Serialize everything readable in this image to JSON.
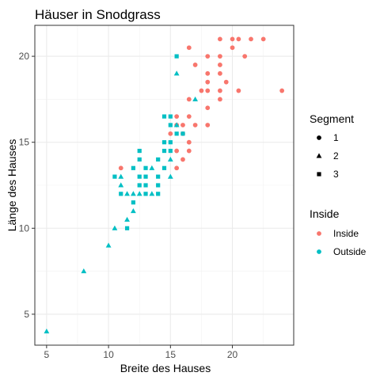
{
  "chart_data": {
    "type": "scatter",
    "title": "Häuser in Snodgrass",
    "xlabel": "Breite des Hauses",
    "ylabel": "Länge des Hauses",
    "xlim": [
      4.05,
      24.95
    ],
    "ylim": [
      3.2,
      21.8
    ],
    "xticks": [
      5,
      10,
      15,
      20
    ],
    "yticks": [
      5,
      10,
      15,
      20
    ],
    "grid": true,
    "legend": {
      "placement": "right",
      "shape": {
        "title": "Segment",
        "entries": [
          {
            "label": "1",
            "shape": "circle"
          },
          {
            "label": "2",
            "shape": "triangle"
          },
          {
            "label": "3",
            "shape": "square"
          }
        ]
      },
      "color": {
        "title": "Inside",
        "entries": [
          {
            "label": "Inside",
            "color": "#F8766D"
          },
          {
            "label": "Outside",
            "color": "#00BFC4"
          }
        ]
      }
    },
    "series": [
      {
        "name": "Inside",
        "color": "#F8766D",
        "points": [
          {
            "x": 19,
            "y": 21,
            "segment": 1
          },
          {
            "x": 20,
            "y": 21,
            "segment": 1
          },
          {
            "x": 20.5,
            "y": 21,
            "segment": 1
          },
          {
            "x": 21.5,
            "y": 21,
            "segment": 1
          },
          {
            "x": 22.5,
            "y": 21,
            "segment": 1
          },
          {
            "x": 16.5,
            "y": 20.5,
            "segment": 1
          },
          {
            "x": 20,
            "y": 20.5,
            "segment": 1
          },
          {
            "x": 18,
            "y": 20,
            "segment": 1
          },
          {
            "x": 19,
            "y": 20,
            "segment": 1
          },
          {
            "x": 21,
            "y": 20,
            "segment": 1
          },
          {
            "x": 17,
            "y": 19.5,
            "segment": 1
          },
          {
            "x": 19,
            "y": 19.5,
            "segment": 1
          },
          {
            "x": 18,
            "y": 19,
            "segment": 1
          },
          {
            "x": 19,
            "y": 19,
            "segment": 1
          },
          {
            "x": 18,
            "y": 18.5,
            "segment": 1
          },
          {
            "x": 19.5,
            "y": 18.5,
            "segment": 1
          },
          {
            "x": 17.5,
            "y": 18,
            "segment": 1
          },
          {
            "x": 18,
            "y": 18,
            "segment": 1
          },
          {
            "x": 19,
            "y": 18,
            "segment": 1
          },
          {
            "x": 20.5,
            "y": 18,
            "segment": 1
          },
          {
            "x": 24,
            "y": 18,
            "segment": 1
          },
          {
            "x": 16.5,
            "y": 17.5,
            "segment": 1
          },
          {
            "x": 19,
            "y": 17.5,
            "segment": 1
          },
          {
            "x": 18,
            "y": 17,
            "segment": 1
          },
          {
            "x": 15.5,
            "y": 16.5,
            "segment": 1
          },
          {
            "x": 16.5,
            "y": 16.5,
            "segment": 1
          },
          {
            "x": 17,
            "y": 16,
            "segment": 1
          },
          {
            "x": 18,
            "y": 16,
            "segment": 1
          },
          {
            "x": 15.5,
            "y": 16,
            "segment": 1
          },
          {
            "x": 16,
            "y": 16,
            "segment": 1
          },
          {
            "x": 16,
            "y": 15.5,
            "segment": 1
          },
          {
            "x": 15,
            "y": 15.5,
            "segment": 1
          },
          {
            "x": 16.5,
            "y": 15,
            "segment": 1
          },
          {
            "x": 15.5,
            "y": 14.5,
            "segment": 1
          },
          {
            "x": 16.5,
            "y": 14.5,
            "segment": 1
          },
          {
            "x": 16,
            "y": 14,
            "segment": 1
          },
          {
            "x": 11,
            "y": 13.5,
            "segment": 1
          },
          {
            "x": 15.5,
            "y": 13.5,
            "segment": 1
          }
        ]
      },
      {
        "name": "Outside",
        "color": "#00BFC4",
        "points": [
          {
            "x": 15.5,
            "y": 20,
            "segment": 3
          },
          {
            "x": 15.5,
            "y": 19,
            "segment": 2
          },
          {
            "x": 17,
            "y": 17.5,
            "segment": 2
          },
          {
            "x": 14.5,
            "y": 16.5,
            "segment": 3
          },
          {
            "x": 15,
            "y": 16.5,
            "segment": 3
          },
          {
            "x": 15,
            "y": 16,
            "segment": 3
          },
          {
            "x": 15.5,
            "y": 16,
            "segment": 2
          },
          {
            "x": 16,
            "y": 15.5,
            "segment": 3
          },
          {
            "x": 15.5,
            "y": 15.5,
            "segment": 3
          },
          {
            "x": 14.5,
            "y": 15,
            "segment": 3
          },
          {
            "x": 15,
            "y": 15,
            "segment": 3
          },
          {
            "x": 14.5,
            "y": 14.5,
            "segment": 3
          },
          {
            "x": 15,
            "y": 14.5,
            "segment": 3
          },
          {
            "x": 12.5,
            "y": 14.5,
            "segment": 3
          },
          {
            "x": 14,
            "y": 14,
            "segment": 3
          },
          {
            "x": 15,
            "y": 14,
            "segment": 2
          },
          {
            "x": 12.5,
            "y": 14,
            "segment": 3
          },
          {
            "x": 13,
            "y": 13.5,
            "segment": 3
          },
          {
            "x": 13.5,
            "y": 13.5,
            "segment": 2
          },
          {
            "x": 12,
            "y": 13.5,
            "segment": 3
          },
          {
            "x": 14.5,
            "y": 13.5,
            "segment": 3
          },
          {
            "x": 15,
            "y": 13,
            "segment": 2
          },
          {
            "x": 10.5,
            "y": 13,
            "segment": 3
          },
          {
            "x": 11,
            "y": 13,
            "segment": 2
          },
          {
            "x": 12.5,
            "y": 13,
            "segment": 3
          },
          {
            "x": 13,
            "y": 13,
            "segment": 3
          },
          {
            "x": 14,
            "y": 13,
            "segment": 3
          },
          {
            "x": 11,
            "y": 12.5,
            "segment": 2
          },
          {
            "x": 12.5,
            "y": 12.5,
            "segment": 3
          },
          {
            "x": 13,
            "y": 12.5,
            "segment": 3
          },
          {
            "x": 14,
            "y": 12.5,
            "segment": 3
          },
          {
            "x": 11,
            "y": 12,
            "segment": 3
          },
          {
            "x": 11.5,
            "y": 12,
            "segment": 2
          },
          {
            "x": 12,
            "y": 12,
            "segment": 2
          },
          {
            "x": 12.5,
            "y": 12,
            "segment": 2
          },
          {
            "x": 13,
            "y": 12,
            "segment": 3
          },
          {
            "x": 14,
            "y": 12,
            "segment": 3
          },
          {
            "x": 13.5,
            "y": 12,
            "segment": 2
          },
          {
            "x": 12,
            "y": 11.5,
            "segment": 3
          },
          {
            "x": 12,
            "y": 11,
            "segment": 2
          },
          {
            "x": 11.5,
            "y": 10.5,
            "segment": 2
          },
          {
            "x": 10.5,
            "y": 10,
            "segment": 2
          },
          {
            "x": 11.5,
            "y": 10,
            "segment": 3
          },
          {
            "x": 10,
            "y": 9,
            "segment": 2
          },
          {
            "x": 8,
            "y": 7.5,
            "segment": 2
          },
          {
            "x": 5,
            "y": 4,
            "segment": 2
          }
        ]
      }
    ]
  }
}
